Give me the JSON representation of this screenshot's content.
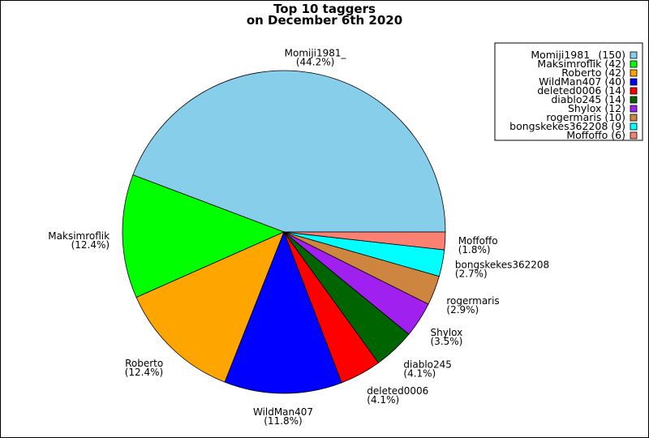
{
  "chart_data": {
    "type": "pie",
    "title": [
      "Top 10 taggers",
      "on December 6th 2020"
    ],
    "slices": [
      {
        "name": "Momiji1981_",
        "value": 150,
        "percent": "(44.2%)",
        "legend": "Momiji1981_ (150)",
        "color": "#87ceeb"
      },
      {
        "name": "Maksimroflik",
        "value": 42,
        "percent": "(12.4%)",
        "legend": "Maksimroflik (42)",
        "color": "#00ff00"
      },
      {
        "name": "Roberto",
        "value": 42,
        "percent": "(12.4%)",
        "legend": "Roberto (42)",
        "color": "#ffa500"
      },
      {
        "name": "WildMan407",
        "value": 40,
        "percent": "(11.8%)",
        "legend": "WildMan407 (40)",
        "color": "#0000ff"
      },
      {
        "name": "deleted0006",
        "value": 14,
        "percent": "(4.1%)",
        "legend": "deleted0006 (14)",
        "color": "#ff0000"
      },
      {
        "name": "diablo245",
        "value": 14,
        "percent": "(4.1%)",
        "legend": "diablo245 (14)",
        "color": "#006400"
      },
      {
        "name": "Shylox",
        "value": 12,
        "percent": "(3.5%)",
        "legend": "Shylox (12)",
        "color": "#a020f0"
      },
      {
        "name": "rogermaris",
        "value": 10,
        "percent": "(2.9%)",
        "legend": "rogermaris (10)",
        "color": "#cd853f"
      },
      {
        "name": "bongskekes362208",
        "value": 9,
        "percent": "(2.7%)",
        "legend": "bongskekes362208 (9)",
        "color": "#00ffff"
      },
      {
        "name": "Moffoffo",
        "value": 6,
        "percent": "(1.8%)",
        "legend": "Moffoffo (6)",
        "color": "#fa8072"
      }
    ],
    "legend_position": "top-right"
  }
}
